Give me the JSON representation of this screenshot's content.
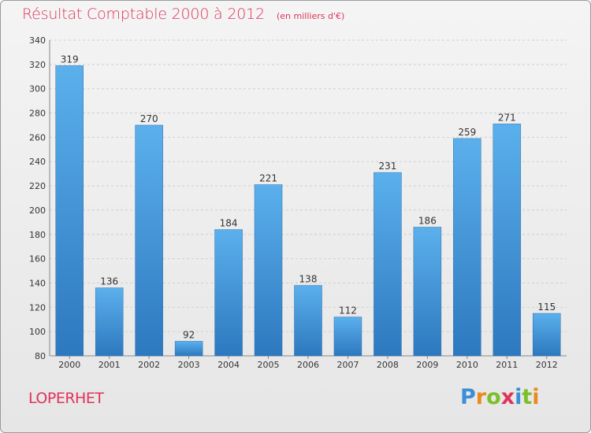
{
  "chart_data": {
    "type": "bar",
    "title": "Résultat Comptable 2000 à 2012",
    "subtitle": "(en milliers d'€)",
    "categories": [
      "2000",
      "2001",
      "2002",
      "2003",
      "2004",
      "2005",
      "2006",
      "2007",
      "2008",
      "2009",
      "2010",
      "2011",
      "2012"
    ],
    "values": [
      319,
      136,
      270,
      92,
      184,
      221,
      138,
      112,
      231,
      186,
      259,
      271,
      115
    ],
    "ylim": [
      80,
      340
    ],
    "yticks": [
      80,
      100,
      120,
      140,
      160,
      180,
      200,
      220,
      240,
      260,
      280,
      300,
      320,
      340
    ],
    "grid": true,
    "xlabel": "",
    "ylabel": "",
    "bar_color": "#4a9fe0"
  },
  "commune": "LOPERHET",
  "logo": {
    "letters": [
      "P",
      "r",
      "o",
      "x",
      "i",
      "t",
      "i"
    ],
    "colors": [
      "#3a8fd6",
      "#e98a1c",
      "#7bbf2a",
      "#e0335a",
      "#3a8fd6",
      "#7bbf2a",
      "#e98a1c"
    ]
  }
}
